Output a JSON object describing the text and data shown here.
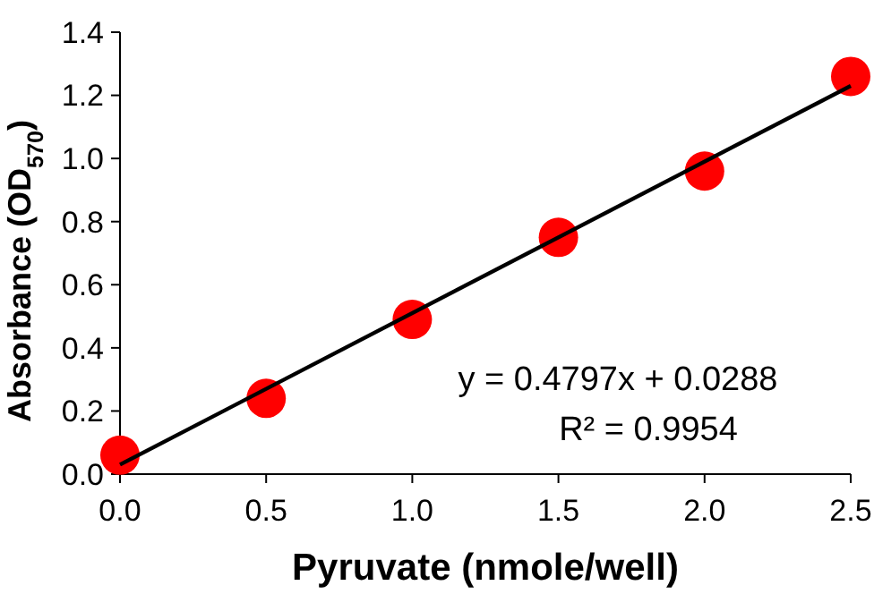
{
  "chart_data": {
    "type": "scatter",
    "xlabel": "Pyruvate (nmole/well)",
    "ylabel": "Absorbance (OD$_{570}$)",
    "xlim": [
      0,
      2.5
    ],
    "xticks": [
      {
        "value": 0,
        "label": "0.0"
      },
      {
        "value": 0.5,
        "label": "0.5"
      },
      {
        "value": 1,
        "label": "1.0"
      },
      {
        "value": 1.5,
        "label": "1.5"
      },
      {
        "value": 2,
        "label": "2.0"
      },
      {
        "value": 2.5,
        "label": "2.5"
      }
    ],
    "ylim": [
      0,
      1.4
    ],
    "yticks": [
      {
        "value": 0,
        "label": "0.0"
      },
      {
        "value": 0.2,
        "label": "0.2"
      },
      {
        "value": 0.4,
        "label": "0.4"
      },
      {
        "value": 0.6,
        "label": "0.6"
      },
      {
        "value": 0.8,
        "label": "0.8"
      },
      {
        "value": 1,
        "label": "1.0"
      },
      {
        "value": 1.2,
        "label": "1.2"
      },
      {
        "value": 1.4,
        "label": "1.4"
      }
    ],
    "grid": false,
    "series": [
      {
        "marker": "circle",
        "color": "#ff0000",
        "x": [
          0,
          0.5,
          1,
          1.5,
          2,
          2.5
        ],
        "values": [
          0.06,
          0.24,
          0.49,
          0.75,
          0.96,
          1.26
        ]
      },
      {
        "type": "line",
        "color": "#000000",
        "x": [
          0,
          2.5
        ],
        "values": [
          0.03,
          1.23
        ]
      }
    ],
    "annotations": [
      "y = 0.4797x + 0.0288",
      "R² = 0.9954"
    ]
  }
}
